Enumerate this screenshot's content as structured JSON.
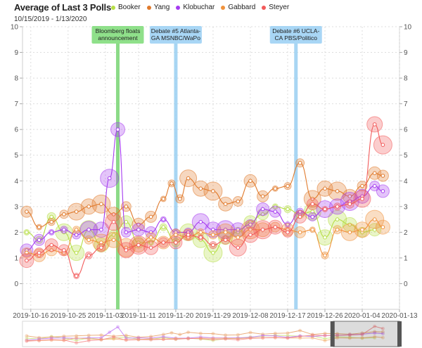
{
  "title": "Average of Last 3 Polls",
  "subtitle": "10/15/2019 - 1/13/2020",
  "chart_data": {
    "type": "line",
    "ylim": [
      -1,
      10
    ],
    "xlim": [
      "2019-10-14",
      "2020-01-13"
    ],
    "yticks": [
      0,
      1,
      2,
      3,
      4,
      5,
      6,
      7,
      8,
      9,
      10
    ],
    "xticks": [
      "2019-10-16",
      "2019-10-25",
      "2019-11-03",
      "2019-11-11",
      "2019-11-20",
      "2019-11-29",
      "2019-12-08",
      "2019-12-17",
      "2019-12-26",
      "2020-01-04",
      "2020-01-13"
    ],
    "grid": true,
    "legend": "top",
    "series": [
      {
        "name": "Booker",
        "color": "#b6de45",
        "x": [
          "2019-10-15",
          "2019-10-18",
          "2019-10-21",
          "2019-10-24",
          "2019-10-27",
          "2019-10-30",
          "2019-11-02",
          "2019-11-05",
          "2019-11-08",
          "2019-11-11",
          "2019-11-14",
          "2019-11-17",
          "2019-11-20",
          "2019-11-23",
          "2019-11-26",
          "2019-11-29",
          "2019-12-02",
          "2019-12-05",
          "2019-12-08",
          "2019-12-11",
          "2019-12-14",
          "2019-12-17",
          "2019-12-20",
          "2019-12-23",
          "2019-12-26",
          "2019-12-29",
          "2020-01-01",
          "2020-01-04",
          "2020-01-07"
        ],
        "y": [
          2.0,
          1.7,
          2.6,
          2.0,
          1.2,
          2.1,
          1.5,
          1.9,
          2.4,
          1.6,
          1.6,
          2.2,
          1.6,
          2.0,
          1.7,
          1.2,
          1.8,
          2.0,
          2.4,
          2.7,
          3.0,
          2.9,
          2.7,
          2.8,
          1.8,
          2.5,
          2.3,
          2.0,
          2.1
        ]
      },
      {
        "name": "Yang",
        "color": "#e07a2c",
        "x": [
          "2019-10-15",
          "2019-10-18",
          "2019-10-21",
          "2019-10-24",
          "2019-10-27",
          "2019-10-30",
          "2019-11-02",
          "2019-11-05",
          "2019-11-08",
          "2019-11-11",
          "2019-11-14",
          "2019-11-17",
          "2019-11-19",
          "2019-11-21",
          "2019-11-23",
          "2019-11-26",
          "2019-11-29",
          "2019-12-02",
          "2019-12-05",
          "2019-12-08",
          "2019-12-11",
          "2019-12-14",
          "2019-12-17",
          "2019-12-20",
          "2019-12-23",
          "2019-12-26",
          "2019-12-29",
          "2020-01-01",
          "2020-01-04",
          "2020-01-07",
          "2020-01-09"
        ],
        "y": [
          2.8,
          2.2,
          2.4,
          2.7,
          2.8,
          3.0,
          3.1,
          2.7,
          3.0,
          2.3,
          2.6,
          3.3,
          3.9,
          3.3,
          4.1,
          3.7,
          3.6,
          3.1,
          3.2,
          4.0,
          3.4,
          3.7,
          3.8,
          4.7,
          3.3,
          3.7,
          3.6,
          3.4,
          3.8,
          4.3,
          4.2
        ]
      },
      {
        "name": "Klobuchar",
        "color": "#a53bf0",
        "x": [
          "2019-10-15",
          "2019-10-18",
          "2019-10-21",
          "2019-10-24",
          "2019-10-27",
          "2019-10-30",
          "2019-11-02",
          "2019-11-04",
          "2019-11-06",
          "2019-11-08",
          "2019-11-11",
          "2019-11-14",
          "2019-11-17",
          "2019-11-20",
          "2019-11-23",
          "2019-11-26",
          "2019-11-29",
          "2019-12-02",
          "2019-12-05",
          "2019-12-08",
          "2019-12-11",
          "2019-12-14",
          "2019-12-17",
          "2019-12-20",
          "2019-12-23",
          "2019-12-26",
          "2019-12-29",
          "2020-01-01",
          "2020-01-04",
          "2020-01-07",
          "2020-01-09"
        ],
        "y": [
          1.3,
          1.7,
          2.0,
          2.1,
          1.9,
          2.1,
          2.1,
          4.1,
          6.0,
          2.0,
          2.1,
          2.0,
          2.5,
          2.0,
          2.0,
          2.4,
          2.1,
          2.1,
          2.1,
          2.3,
          2.9,
          2.8,
          2.3,
          2.8,
          2.6,
          2.9,
          3.0,
          3.2,
          3.4,
          3.8,
          3.6
        ]
      },
      {
        "name": "Gabbard",
        "color": "#f0923c",
        "x": [
          "2019-10-15",
          "2019-10-18",
          "2019-10-21",
          "2019-10-24",
          "2019-10-27",
          "2019-10-30",
          "2019-11-02",
          "2019-11-05",
          "2019-11-08",
          "2019-11-11",
          "2019-11-14",
          "2019-11-17",
          "2019-11-20",
          "2019-11-23",
          "2019-11-26",
          "2019-11-29",
          "2019-12-02",
          "2019-12-05",
          "2019-12-08",
          "2019-12-11",
          "2019-12-14",
          "2019-12-17",
          "2019-12-20",
          "2019-12-23",
          "2019-12-26",
          "2019-12-29",
          "2020-01-01",
          "2020-01-04",
          "2020-01-07",
          "2020-01-09"
        ],
        "y": [
          1.2,
          1.1,
          1.3,
          1.2,
          2.1,
          1.7,
          1.6,
          1.7,
          1.4,
          1.5,
          1.8,
          1.6,
          1.9,
          1.8,
          2.0,
          1.9,
          2.0,
          1.8,
          2.1,
          2.1,
          2.2,
          2.1,
          2.0,
          2.1,
          1.1,
          2.1,
          2.0,
          2.1,
          2.5,
          2.2
        ]
      },
      {
        "name": "Steyer",
        "color": "#f25a5a",
        "x": [
          "2019-10-15",
          "2019-10-18",
          "2019-10-21",
          "2019-10-24",
          "2019-10-27",
          "2019-10-30",
          "2019-11-02",
          "2019-11-05",
          "2019-11-08",
          "2019-11-11",
          "2019-11-14",
          "2019-11-17",
          "2019-11-20",
          "2019-11-23",
          "2019-11-26",
          "2019-11-29",
          "2019-12-02",
          "2019-12-05",
          "2019-12-08",
          "2019-12-11",
          "2019-12-14",
          "2019-12-17",
          "2019-12-20",
          "2019-12-23",
          "2019-12-26",
          "2019-12-29",
          "2020-01-01",
          "2020-01-04",
          "2020-01-07",
          "2020-01-09"
        ],
        "y": [
          0.9,
          1.2,
          1.5,
          1.3,
          0.3,
          1.1,
          1.4,
          2.4,
          1.3,
          1.5,
          1.4,
          1.6,
          1.6,
          1.9,
          1.8,
          1.5,
          1.7,
          1.4,
          1.9,
          2.1,
          2.2,
          2.0,
          2.6,
          3.1,
          2.9,
          3.0,
          3.1,
          3.3,
          6.2,
          5.4
        ]
      }
    ],
    "annotations": [
      {
        "x": "2019-11-06",
        "lines": [
          "Bloomberg floats",
          "announcement"
        ],
        "color": "#7ed67a",
        "box": "#8fe08a"
      },
      {
        "x": "2019-11-20",
        "lines": [
          "Debate #5 Atlanta-",
          "GA MSNBC/WaPo"
        ],
        "color": "#9fd2f2",
        "box": "#a8d6f5"
      },
      {
        "x": "2019-12-19",
        "lines": [
          "Debate #6 UCLA-",
          "CA PBS/Politico"
        ],
        "color": "#9fd2f2",
        "box": "#a8d6f5"
      }
    ],
    "navigator": {
      "selection_start": "2019-12-28"
    }
  }
}
